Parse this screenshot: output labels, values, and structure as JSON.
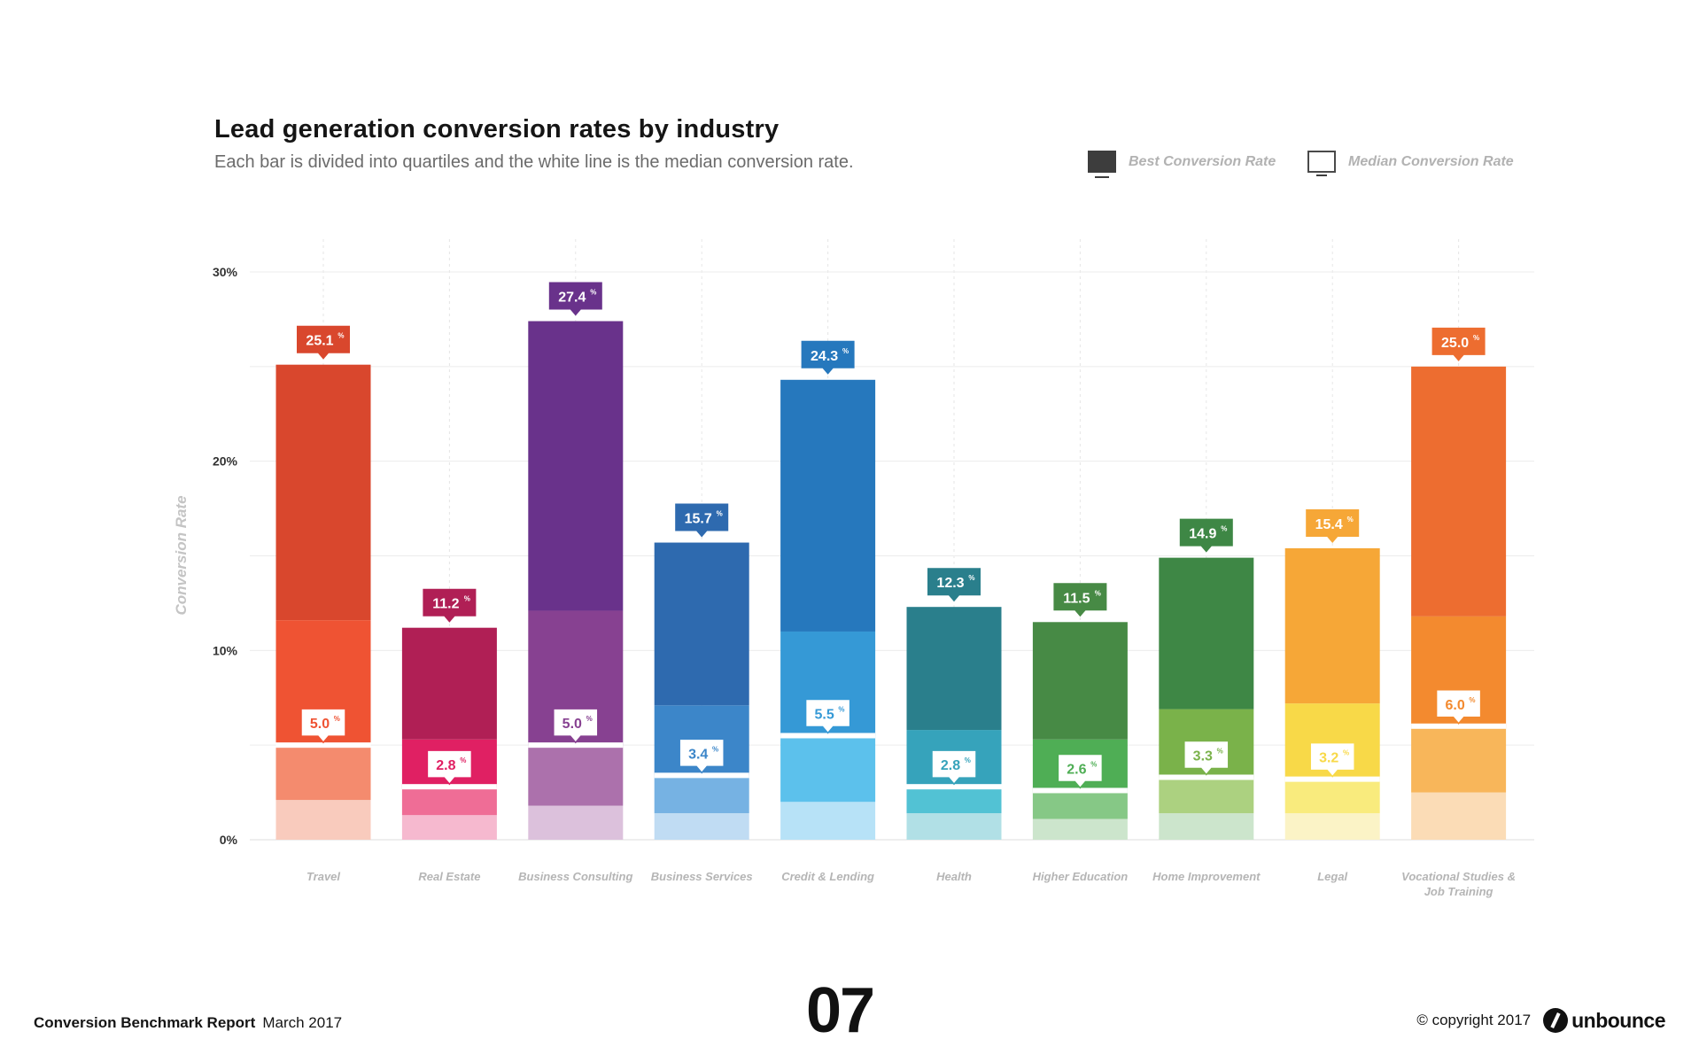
{
  "chart_data": {
    "type": "bar",
    "title": "Lead generation conversion rates by industry",
    "subtitle": "Each bar is divided into quartiles and the white line is the median conversion rate.",
    "ylabel": "Conversion Rate",
    "ylim": [
      0,
      30
    ],
    "yticks": [
      0,
      10,
      20,
      30
    ],
    "ytick_labels": [
      "0%",
      "10%",
      "20%",
      "30%"
    ],
    "grid": true,
    "legend_placement": "top-right",
    "legend": [
      {
        "name": "Best Conversion Rate",
        "color": "#3d3d3d"
      },
      {
        "name": "Median Conversion Rate",
        "color": "#ffffff"
      }
    ],
    "categories": [
      "Travel",
      "Real Estate",
      "Business Consulting",
      "Business Services",
      "Credit & Lending",
      "Health",
      "Higher Education",
      "Home Improvement",
      "Legal",
      "Vocational Studies & Job Training"
    ],
    "best_values": [
      25.1,
      11.2,
      27.4,
      15.7,
      24.3,
      12.3,
      11.5,
      14.9,
      15.4,
      25.0
    ],
    "median_values": [
      5.0,
      2.8,
      5.0,
      3.4,
      5.5,
      2.8,
      2.6,
      3.3,
      3.2,
      6.0
    ],
    "best_labels": [
      "25.1",
      "11.2",
      "27.4",
      "15.7",
      "24.3",
      "12.3",
      "11.5",
      "14.9",
      "15.4",
      "25.0"
    ],
    "median_labels": [
      "5.0",
      "2.8",
      "5.0",
      "3.4",
      "5.5",
      "2.8",
      "2.6",
      "3.3",
      "3.2",
      "6.0"
    ],
    "value_suffix": "%",
    "quartiles": [
      {
        "q1": 2.1,
        "q2": 5.0,
        "q3": 11.6,
        "max": 25.1
      },
      {
        "q1": 1.3,
        "q2": 2.8,
        "q3": 5.3,
        "max": 11.2
      },
      {
        "q1": 1.8,
        "q2": 5.0,
        "q3": 12.1,
        "max": 27.4
      },
      {
        "q1": 1.4,
        "q2": 3.4,
        "q3": 7.1,
        "max": 15.7
      },
      {
        "q1": 2.0,
        "q2": 5.5,
        "q3": 11.0,
        "max": 24.3
      },
      {
        "q1": 1.4,
        "q2": 2.8,
        "q3": 5.8,
        "max": 12.3
      },
      {
        "q1": 1.1,
        "q2": 2.6,
        "q3": 5.3,
        "max": 11.5
      },
      {
        "q1": 1.4,
        "q2": 3.3,
        "q3": 6.9,
        "max": 14.9
      },
      {
        "q1": 1.4,
        "q2": 3.2,
        "q3": 7.2,
        "max": 15.4
      },
      {
        "q1": 2.5,
        "q2": 6.0,
        "q3": 11.8,
        "max": 25.0
      }
    ],
    "colors": [
      [
        "#f9cbbd",
        "#f48b6e",
        "#ef5333",
        "#d9472d"
      ],
      [
        "#f6b9cf",
        "#ef6d96",
        "#e02063",
        "#b01f55"
      ],
      [
        "#dcc1dc",
        "#ac71ac",
        "#874191",
        "#69328b"
      ],
      [
        "#c0dcf3",
        "#76b2e3",
        "#3c86c9",
        "#2e6aaf"
      ],
      [
        "#b7e2f7",
        "#5cc1ec",
        "#3599d6",
        "#2678bd"
      ],
      [
        "#b1e0e6",
        "#52c2d4",
        "#36a3bb",
        "#2a7f8c"
      ],
      [
        "#cce5cc",
        "#86c886",
        "#4fae55",
        "#478a45"
      ],
      [
        "#cce5cc",
        "#acd180",
        "#7ab24a",
        "#3e8745"
      ],
      [
        "#fbf3c6",
        "#f9eb7d",
        "#f8d948",
        "#f6a737"
      ],
      [
        "#fbdcb6",
        "#f8b65a",
        "#f38a2f",
        "#ed6d30"
      ]
    ]
  },
  "footer": {
    "report_name": "Conversion Benchmark Report",
    "date": "March 2017",
    "page_number": "07",
    "copyright": "© copyright 2017",
    "brand": "unbounce"
  }
}
